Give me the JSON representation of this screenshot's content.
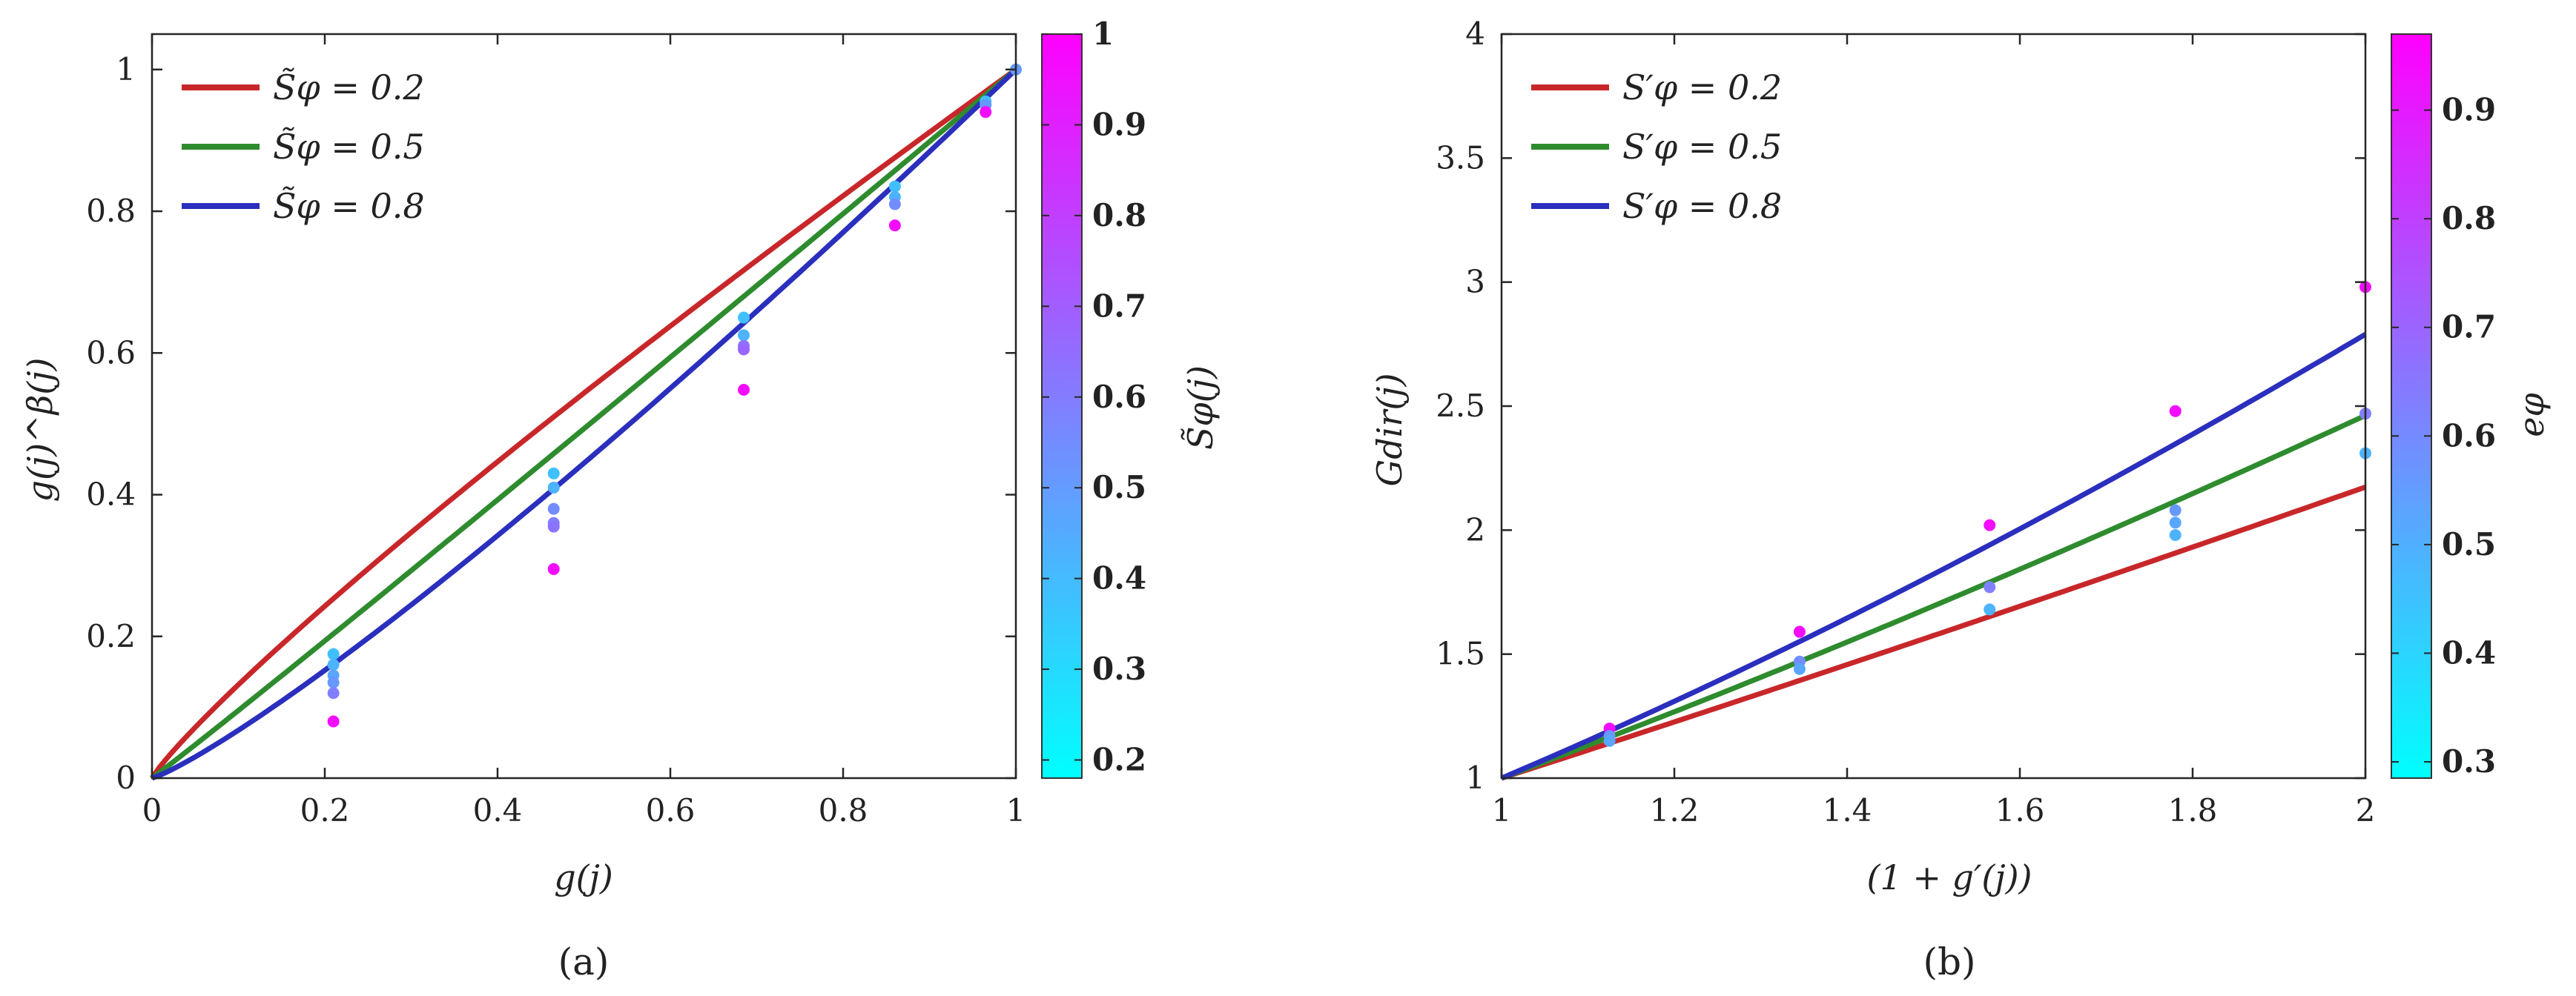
{
  "colors": {
    "red": "#c8272a",
    "green": "#2e8b2e",
    "blue": "#2b2fbd",
    "cmap_low": "#00ffff",
    "cmap_high": "#ff00ff"
  },
  "chart_data": [
    {
      "type": "line+scatter",
      "caption": "(a)",
      "xlabel": "g(j)",
      "ylabel": "g(j)^β(j)",
      "xlim": [
        0,
        1
      ],
      "ylim": [
        0,
        1.05
      ],
      "xticks": [
        0,
        0.2,
        0.4,
        0.6,
        0.8,
        1
      ],
      "xtick_labels": [
        "0",
        "0.2",
        "0.4",
        "0.6",
        "0.8",
        "1"
      ],
      "yticks": [
        0,
        0.2,
        0.4,
        0.6,
        0.8,
        1
      ],
      "ytick_labels": [
        "0",
        "0.2",
        "0.4",
        "0.6",
        "0.8",
        "1"
      ],
      "legend_position": "top-left",
      "series": [
        {
          "name": "S̃φ = 0.2",
          "color": "#c8272a",
          "exponent": 0.88
        },
        {
          "name": "S̃φ = 0.5",
          "color": "#2e8b2e",
          "exponent": 1.02
        },
        {
          "name": "S̃φ = 0.8",
          "color": "#2b2fbd",
          "exponent": 1.17
        }
      ],
      "scatter": {
        "x": [
          0.21,
          0.21,
          0.21,
          0.21,
          0.21,
          0.21,
          0.465,
          0.465,
          0.465,
          0.465,
          0.465,
          0.465,
          0.685,
          0.685,
          0.685,
          0.685,
          0.685,
          0.86,
          0.86,
          0.86,
          0.86,
          0.965,
          0.965,
          0.965,
          1.0
        ],
        "y": [
          0.175,
          0.16,
          0.145,
          0.135,
          0.12,
          0.08,
          0.43,
          0.41,
          0.38,
          0.36,
          0.355,
          0.295,
          0.65,
          0.625,
          0.61,
          0.605,
          0.548,
          0.835,
          0.82,
          0.81,
          0.78,
          0.955,
          0.95,
          0.94,
          1.0
        ],
        "c": [
          0.25,
          0.3,
          0.35,
          0.4,
          0.5,
          0.95,
          0.25,
          0.3,
          0.45,
          0.5,
          0.55,
          0.95,
          0.25,
          0.3,
          0.55,
          0.6,
          0.95,
          0.25,
          0.3,
          0.45,
          0.95,
          0.25,
          0.4,
          0.95,
          0.4
        ]
      },
      "colorbar": {
        "label": "S̃φ(j)",
        "range": [
          0.18,
          1.0
        ],
        "ticks": [
          0.2,
          0.3,
          0.4,
          0.5,
          0.6,
          0.7,
          0.8,
          0.9,
          1
        ],
        "tick_labels": [
          "0.2",
          "0.3",
          "0.4",
          "0.5",
          "0.6",
          "0.7",
          "0.8",
          "0.9",
          "1"
        ]
      }
    },
    {
      "type": "line+scatter",
      "caption": "(b)",
      "xlabel": "(1 + g′(j))",
      "ylabel": "Gdir(j)",
      "xlim": [
        1,
        2
      ],
      "ylim": [
        1,
        4
      ],
      "xticks": [
        1,
        1.2,
        1.4,
        1.6,
        1.8,
        2
      ],
      "xtick_labels": [
        "1",
        "1.2",
        "1.4",
        "1.6",
        "1.8",
        "2"
      ],
      "yticks": [
        1,
        1.5,
        2,
        2.5,
        3,
        3.5,
        4
      ],
      "ytick_labels": [
        "1",
        "1.5",
        "2",
        "2.5",
        "3",
        "3.5",
        "4"
      ],
      "legend_position": "top-left",
      "series": [
        {
          "name": "S′φ = 0.2",
          "color": "#c8272a",
          "exponent": 1.12
        },
        {
          "name": "S′φ = 0.5",
          "color": "#2e8b2e",
          "exponent": 1.3
        },
        {
          "name": "S′φ = 0.8",
          "color": "#2b2fbd",
          "exponent": 1.48
        }
      ],
      "scatter": {
        "x": [
          1.125,
          1.125,
          1.125,
          1.345,
          1.345,
          1.345,
          1.565,
          1.565,
          1.565,
          1.78,
          1.78,
          1.78,
          1.78,
          2.0,
          2.0,
          2.0
        ],
        "y": [
          1.2,
          1.17,
          1.15,
          1.59,
          1.47,
          1.44,
          2.02,
          1.77,
          1.68,
          2.48,
          2.08,
          2.03,
          1.98,
          2.98,
          2.47,
          2.31
        ],
        "c": [
          0.95,
          0.4,
          0.35,
          0.95,
          0.45,
          0.35,
          0.95,
          0.5,
          0.3,
          0.95,
          0.4,
          0.35,
          0.3,
          0.95,
          0.5,
          0.3
        ]
      },
      "colorbar": {
        "label": "eφ",
        "range": [
          0.285,
          0.97
        ],
        "ticks": [
          0.3,
          0.4,
          0.5,
          0.6,
          0.7,
          0.8,
          0.9
        ],
        "tick_labels": [
          "0.3",
          "0.4",
          "0.5",
          "0.6",
          "0.7",
          "0.8",
          "0.9"
        ]
      }
    }
  ]
}
